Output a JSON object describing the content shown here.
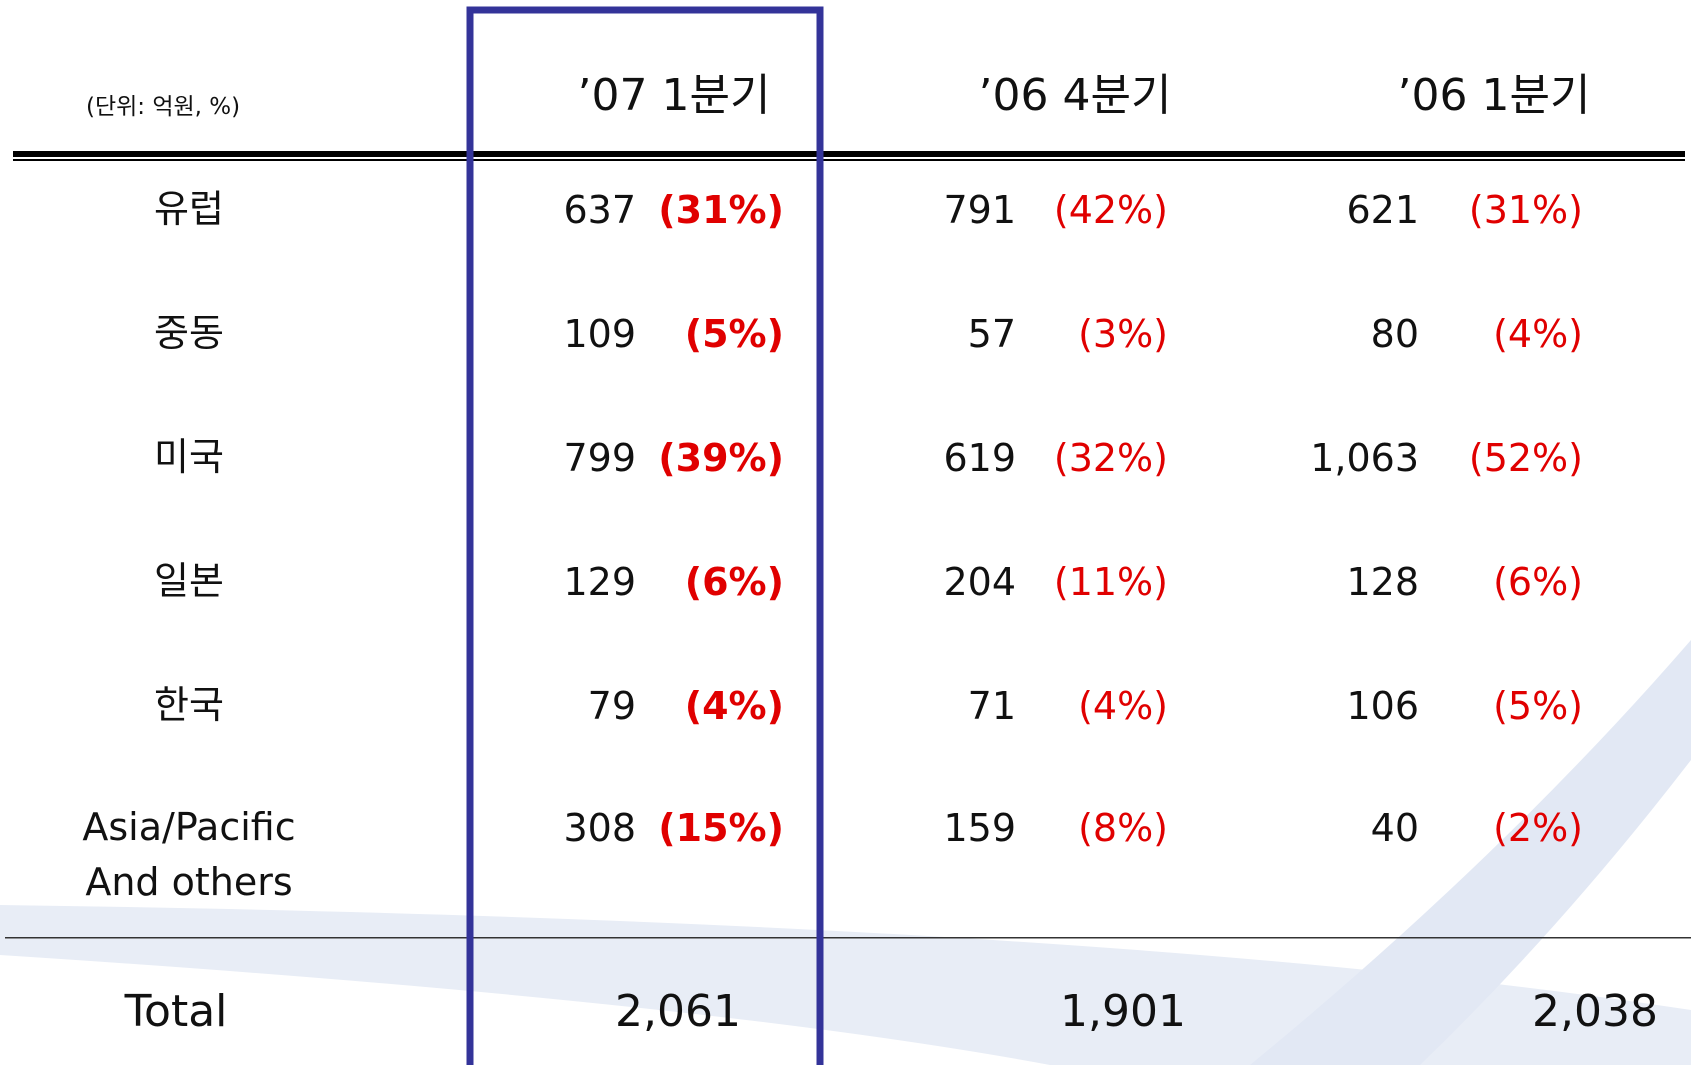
{
  "unit": "(단위: 억원, %)",
  "columns": [
    "’07 1분기",
    "’06 4분기",
    "’06 1분기"
  ],
  "rows": [
    {
      "region": "유럽",
      "cells": [
        {
          "value": "637",
          "share": "(31%)"
        },
        {
          "value": "791",
          "share": "(42%)"
        },
        {
          "value": "621",
          "share": "(31%)"
        }
      ]
    },
    {
      "region": "중동",
      "cells": [
        {
          "value": "109",
          "share": "(5%)"
        },
        {
          "value": "57",
          "share": "(3%)"
        },
        {
          "value": "80",
          "share": "(4%)"
        }
      ]
    },
    {
      "region": "미국",
      "cells": [
        {
          "value": "799",
          "share": "(39%)"
        },
        {
          "value": "619",
          "share": "(32%)"
        },
        {
          "value": "1,063",
          "share": "(52%)"
        }
      ]
    },
    {
      "region": "일본",
      "cells": [
        {
          "value": "129",
          "share": "(6%)"
        },
        {
          "value": "204",
          "share": "(11%)"
        },
        {
          "value": "128",
          "share": "(6%)"
        }
      ]
    },
    {
      "region": "한국",
      "cells": [
        {
          "value": "79",
          "share": "(4%)"
        },
        {
          "value": "71",
          "share": "(4%)"
        },
        {
          "value": "106",
          "share": "(5%)"
        }
      ]
    },
    {
      "region": "Asia/Pacific And others",
      "cells": [
        {
          "value": "308",
          "share": "(15%)"
        },
        {
          "value": "159",
          "share": "(8%)"
        },
        {
          "value": "40",
          "share": "(2%)"
        }
      ]
    }
  ],
  "total": {
    "label": "Total",
    "values": [
      "2,061",
      "1,901",
      "2,038"
    ]
  }
}
